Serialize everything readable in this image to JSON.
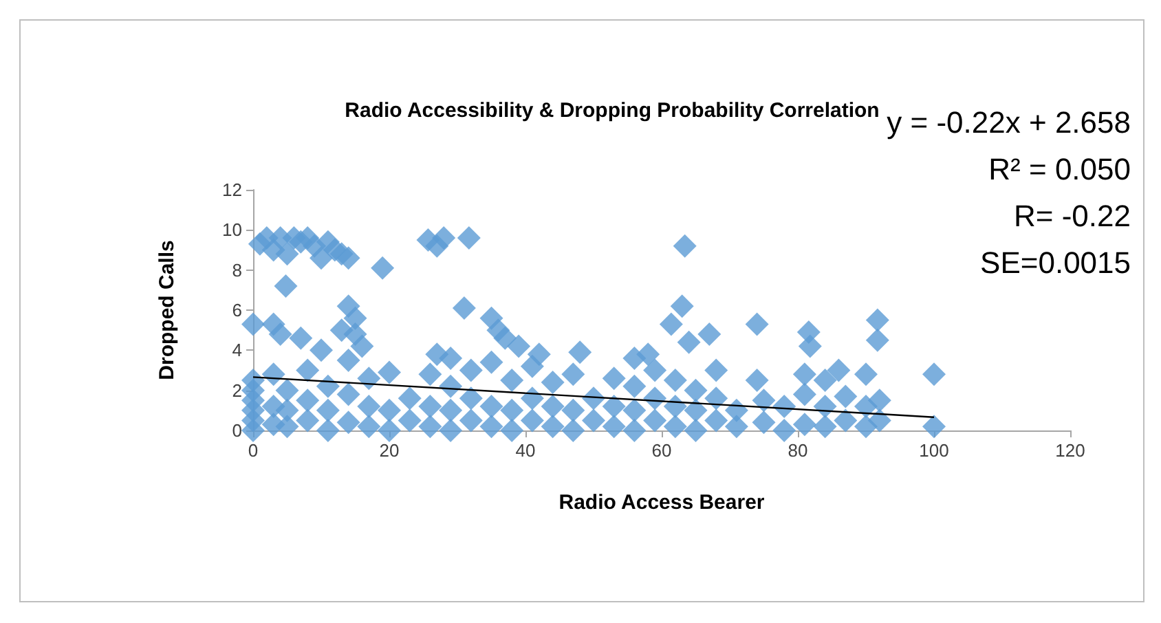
{
  "chart_data": {
    "type": "scatter",
    "title": "Radio Accessibility & Dropping Probability Correlation",
    "xlabel": "Radio Access Bearer",
    "ylabel": "Dropped Calls",
    "annotations": [
      "y = -0.22x + 2.658",
      "R² = 0.050",
      "R= -0.22",
      "SE=0.0015"
    ],
    "xlim": [
      0,
      120
    ],
    "xticks": [
      0,
      20,
      40,
      60,
      80,
      100,
      120
    ],
    "ylim": [
      0,
      12
    ],
    "yticks": [
      0,
      2,
      4,
      6,
      8,
      10,
      12
    ],
    "grid": false,
    "marker": "diamond",
    "series": [
      {
        "color": "#5b9bd5",
        "x": [
          1,
          2,
          3,
          4,
          5,
          6,
          7,
          8,
          9,
          10,
          11,
          12,
          13,
          14,
          4.8,
          19,
          25.7,
          27,
          28,
          31.7,
          63.4,
          0,
          3,
          4,
          7,
          10,
          14,
          15,
          13,
          15,
          16,
          27,
          29,
          31,
          35,
          36,
          37,
          39,
          42,
          48,
          56,
          58,
          61.4,
          63,
          64,
          67,
          74,
          74,
          81.6,
          81.8,
          86,
          90,
          91.7,
          91.7,
          100,
          100,
          0,
          0,
          0,
          0,
          0,
          0,
          3,
          3,
          3,
          5,
          5,
          5,
          8,
          8,
          8,
          11,
          11,
          11,
          14,
          14,
          14,
          17,
          17,
          17,
          20,
          20,
          20,
          23,
          23,
          26,
          26,
          26,
          29,
          29,
          29,
          32,
          32,
          32,
          35,
          35,
          35,
          38,
          38,
          38,
          41,
          41,
          41,
          44,
          44,
          44,
          47,
          47,
          47,
          50,
          50,
          53,
          53,
          53,
          56,
          56,
          56,
          59,
          59,
          59,
          62,
          62,
          62,
          65,
          65,
          65,
          68,
          68,
          68,
          71,
          71,
          75,
          75,
          78,
          78,
          81,
          81,
          81,
          84,
          84,
          84,
          87,
          87,
          90,
          90,
          92,
          92
        ],
        "values": [
          9.3,
          9.6,
          9.0,
          9.6,
          8.8,
          9.6,
          9.4,
          9.6,
          9.2,
          8.6,
          9.4,
          9.0,
          8.8,
          8.6,
          7.2,
          8.1,
          9.5,
          9.2,
          9.6,
          9.6,
          9.2,
          5.3,
          5.3,
          4.8,
          4.6,
          4.0,
          6.2,
          5.6,
          5.0,
          4.8,
          4.2,
          3.8,
          3.6,
          6.1,
          5.6,
          5.0,
          4.6,
          4.2,
          3.8,
          3.9,
          3.6,
          3.8,
          5.3,
          6.2,
          4.4,
          4.8,
          5.3,
          2.5,
          4.9,
          4.2,
          3.0,
          2.8,
          5.5,
          4.5,
          2.8,
          0.2,
          0,
          0.5,
          1,
          1.5,
          2,
          2.5,
          0.3,
          1.2,
          2.8,
          0.2,
          1,
          2,
          0.5,
          1.5,
          3,
          0,
          1,
          2.2,
          0.4,
          1.8,
          3.5,
          0.2,
          1.2,
          2.6,
          0,
          1,
          2.9,
          0.5,
          1.6,
          0.2,
          1.2,
          2.8,
          0,
          1,
          2.2,
          0.5,
          1.6,
          3,
          0.2,
          1.2,
          3.4,
          0,
          1,
          2.5,
          0.5,
          1.6,
          3.2,
          0.2,
          1.2,
          2.4,
          0,
          1,
          2.8,
          0.5,
          1.6,
          0.2,
          1.2,
          2.6,
          0,
          1,
          2.2,
          0.5,
          1.6,
          3,
          0.2,
          1.2,
          2.5,
          0,
          1,
          2,
          0.5,
          1.6,
          3,
          0.2,
          1,
          0.4,
          1.5,
          0,
          1.2,
          0.3,
          1.8,
          2.8,
          0.2,
          1.2,
          2.5,
          0.5,
          1.7,
          0.2,
          1.2,
          0.5,
          1.5
        ]
      },
      {
        "type": "line",
        "color": "#000000",
        "marker": "none",
        "x": [
          0,
          100
        ],
        "values": [
          2.66,
          0.66
        ]
      }
    ]
  }
}
